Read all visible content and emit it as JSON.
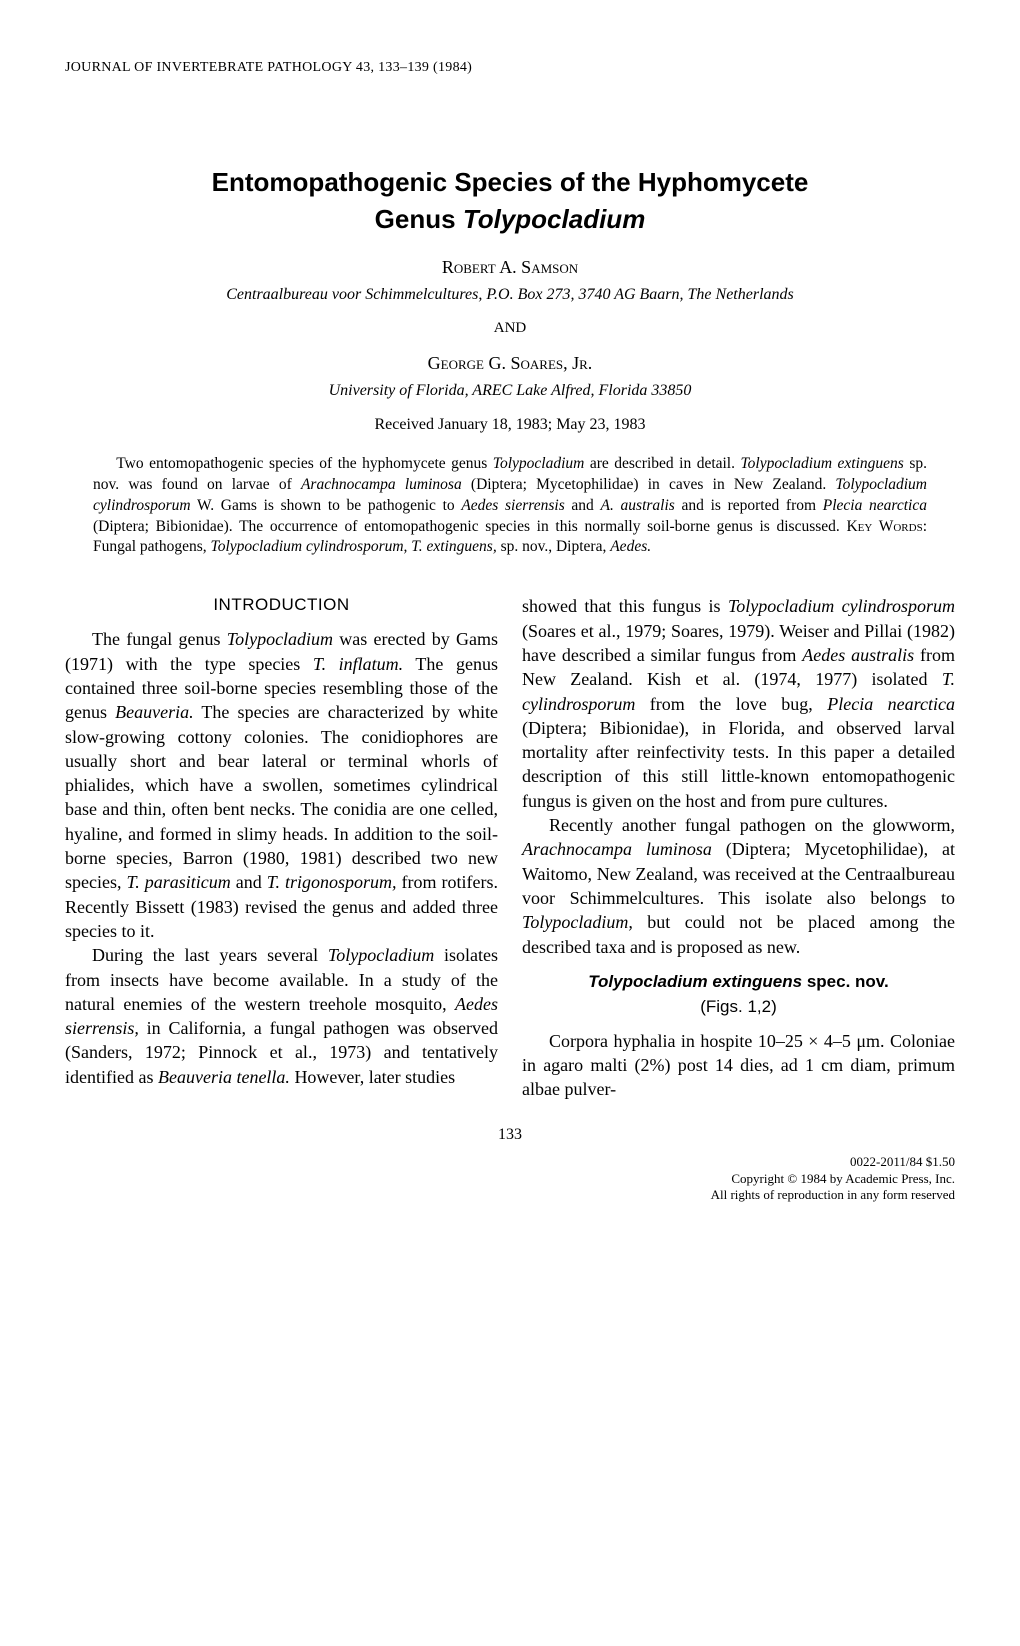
{
  "journal_header": "JOURNAL OF INVERTEBRATE PATHOLOGY 43, 133–139 (1984)",
  "title_line1": "Entomopathogenic Species of the Hyphomycete",
  "title_line2_prefix": "Genus ",
  "title_line2_genus": "Tolypocladium",
  "author1_name": "Robert A. Samson",
  "author1_affiliation": "Centraalbureau voor Schimmelcultures, P.O. Box 273, 3740 AG Baarn, The Netherlands",
  "and_label": "AND",
  "author2_name": "George G. Soares, Jr.",
  "author2_affiliation": "University of Florida, AREC Lake Alfred, Florida 33850",
  "received": "Received January 18, 1983; May 23, 1983",
  "abstract_html": "Two entomopathogenic species of the hyphomycete genus <i>Tolypocladium</i> are described in detail. <i>Tolypocladium extinguens</i> sp. nov. was found on larvae of <i>Arachnocampa luminosa</i> (Diptera; Mycetophilidae) in caves in New Zealand. <i>Tolypocladium cylindrosporum</i> W. Gams is shown to be pathogenic to <i>Aedes sierrensis</i> and <i>A. australis</i> and is reported from <i>Plecia nearctica</i> (Diptera; Bibionidae). The occurrence of entomopathogenic species in this normally soil-borne genus is discussed. <span class=\"keywords-label\">Key Words:</span> Fungal pathogens, <i>Tolypocladium cylindrosporum, T. extinguens,</i> sp. nov., Diptera, <i>Aedes.</i>",
  "intro_heading": "INTRODUCTION",
  "col1_para1_html": "The fungal genus <i>Tolypocladium</i> was erected by Gams (1971) with the type species <i>T. inflatum.</i> The genus contained three soil-borne species resembling those of the genus <i>Beauveria.</i> The species are characterized by white slow-growing cottony colonies. The conidiophores are usually short and bear lateral or terminal whorls of phialides, which have a swollen, sometimes cylindrical base and thin, often bent necks. The conidia are one celled, hyaline, and formed in slimy heads. In addition to the soil-borne species, Barron (1980, 1981) described two new species, <i>T. parasiticum</i> and <i>T. trigonosporum,</i> from rotifers. Recently Bissett (1983) revised the genus and added three species to it.",
  "col1_para2_html": "During the last years several <i>Tolypocladium</i> isolates from insects have become available. In a study of the natural enemies of the western treehole mosquito, <i>Aedes sierrensis,</i> in California, a fungal pathogen was observed (Sanders, 1972; Pinnock et al., 1973) and tentatively identified as <i>Beauveria tenella.</i> However, later studies",
  "col2_para1_html": "showed that this fungus is <i>Tolypocladium cylindrosporum</i> (Soares et al., 1979; Soares, 1979). Weiser and Pillai (1982) have described a similar fungus from <i>Aedes australis</i> from New Zealand. Kish et al. (1974, 1977) isolated <i>T. cylindrosporum</i> from the love bug, <i>Plecia nearctica</i> (Diptera; Bibionidae), in Florida, and observed larval mortality after reinfectivity tests. In this paper a detailed description of this still little-known entomopathogenic fungus is given on the host and from pure cultures.",
  "col2_para2_html": "Recently another fungal pathogen on the glowworm, <i>Arachnocampa luminosa</i> (Diptera; Mycetophilidae), at Waitomo, New Zealand, was received at the Centraalbureau voor Schimmelcultures. This isolate also belongs to <i>Tolypocladium,</i> but could not be placed among the described taxa and is proposed as new.",
  "species_heading_html": "<i>Tolypocladium extinguens</i> spec. nov.",
  "figs_ref": "(Figs. 1,2)",
  "col2_para3_html": "Corpora hyphalia in hospite 10–25 × 4–5 μm. Coloniae in agaro malti (2%) post 14 dies, ad 1 cm diam, primum albae pulver-",
  "page_number": "133",
  "footer_issn": "0022-2011/84 $1.50",
  "footer_copyright": "Copyright © 1984 by Academic Press, Inc.",
  "footer_rights": "All rights of reproduction in any form reserved"
}
